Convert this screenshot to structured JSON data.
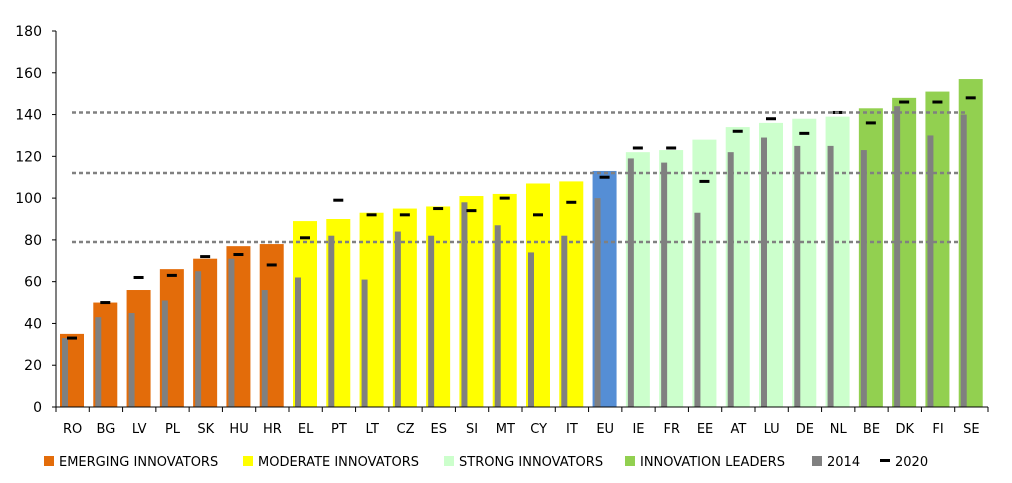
{
  "chart_data": {
    "type": "bar",
    "title": "",
    "xlabel": "",
    "ylabel": "",
    "ylim": [
      0,
      180
    ],
    "yticks": [
      0,
      20,
      40,
      60,
      80,
      100,
      120,
      140,
      160,
      180
    ],
    "grid": false,
    "legend_position": "bottom",
    "reference_lines": [
      79,
      112,
      141
    ],
    "categories": [
      "RO",
      "BG",
      "LV",
      "PL",
      "SK",
      "HU",
      "HR",
      "EL",
      "PT",
      "LT",
      "CZ",
      "ES",
      "SI",
      "MT",
      "CY",
      "IT",
      "EU",
      "IE",
      "FR",
      "EE",
      "AT",
      "LU",
      "DE",
      "NL",
      "BE",
      "DK",
      "FI",
      "SE"
    ],
    "groups": [
      "emerging",
      "emerging",
      "emerging",
      "emerging",
      "emerging",
      "emerging",
      "emerging",
      "moderate",
      "moderate",
      "moderate",
      "moderate",
      "moderate",
      "moderate",
      "moderate",
      "moderate",
      "moderate",
      "eu",
      "strong",
      "strong",
      "strong",
      "strong",
      "strong",
      "strong",
      "strong",
      "leader",
      "leader",
      "leader",
      "leader"
    ],
    "series": [
      {
        "key": "main",
        "values": [
          35,
          50,
          56,
          66,
          71,
          77,
          78,
          89,
          90,
          93,
          95,
          96,
          101,
          102,
          107,
          108,
          113,
          122,
          123,
          128,
          134,
          136,
          138,
          139,
          143,
          148,
          151,
          157
        ]
      },
      {
        "name": "2014",
        "key": "y2014",
        "values": [
          33,
          43,
          45,
          51,
          65,
          71,
          56,
          62,
          82,
          61,
          84,
          82,
          98,
          87,
          74,
          82,
          100,
          119,
          117,
          93,
          122,
          129,
          125,
          125,
          123,
          144,
          130,
          140
        ]
      },
      {
        "name": "2020",
        "key": "y2020",
        "values": [
          33,
          50,
          62,
          63,
          72,
          73,
          68,
          81,
          99,
          92,
          92,
          95,
          94,
          100,
          92,
          98,
          110,
          124,
          124,
          108,
          132,
          138,
          131,
          141,
          136,
          146,
          146,
          148
        ]
      }
    ],
    "colors": {
      "emerging": "#e36c0a",
      "moderate": "#ffff00",
      "strong": "#ccffcc",
      "leader": "#92d050",
      "eu": "#558ed5",
      "y2014": "#808080",
      "y2020": "#000000",
      "refline": "#808080"
    },
    "legend": [
      {
        "label": "EMERGING INNOVATORS",
        "color_key": "emerging",
        "shape": "square"
      },
      {
        "label": "MODERATE INNOVATORS",
        "color_key": "moderate",
        "shape": "square"
      },
      {
        "label": "STRONG INNOVATORS",
        "color_key": "strong",
        "shape": "square"
      },
      {
        "label": "INNOVATION LEADERS",
        "color_key": "leader",
        "shape": "square"
      },
      {
        "label": "2014",
        "color_key": "y2014",
        "shape": "square"
      },
      {
        "label": "2020",
        "color_key": "y2020",
        "shape": "dash"
      }
    ]
  }
}
